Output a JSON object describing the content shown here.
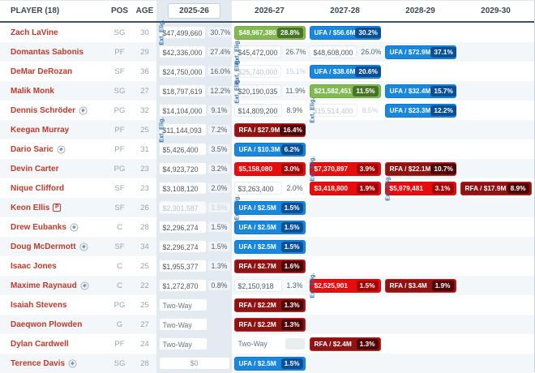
{
  "header": {
    "player": "PLAYER (18)",
    "pos": "POS",
    "age": "AGE",
    "seasons": [
      "2025-26",
      "2026-27",
      "2027-28",
      "2028-29",
      "2029-30"
    ]
  },
  "ext_label": "Ext. Elig.",
  "icons": {
    "tag": "contract-tag-icon",
    "p": "p-badge-icon",
    "p_letter": "P"
  },
  "colors": {
    "green_box": "#82ba51",
    "green_badge": "#497427",
    "red_box": "#e80c0c",
    "red_badge": "#a30404",
    "rfa_box": "#8f1313",
    "rfa_badge": "#4d0707",
    "ufa_box": "#1887dd",
    "ufa_badge": "#0b4f97",
    "season1_col_bg": "#e3eaf1",
    "alt_row_bg": "#f3f7fa",
    "player_link": "#c0392b",
    "ext_label": "#2e6da4"
  },
  "rows": [
    {
      "name": "Zach LaVine",
      "pos": "SG",
      "age": "30",
      "icon": null,
      "ext": 0,
      "cells": [
        {
          "type": "plain",
          "amount": "$47,499,660",
          "pct": "30.7%"
        },
        {
          "type": "green",
          "amount": "$48,967,380",
          "pct": "28.8%"
        },
        {
          "type": "ufa",
          "amount": "UFA / $56.6M",
          "pct": "30.2%"
        },
        null,
        null
      ]
    },
    {
      "name": "Domantas Sabonis",
      "pos": "PF",
      "age": "29",
      "icon": null,
      "ext": 1,
      "cells": [
        {
          "type": "plain",
          "amount": "$42,336,000",
          "pct": "27.4%"
        },
        {
          "type": "plain",
          "amount": "$45,472,000",
          "pct": "26.7%"
        },
        {
          "type": "plain",
          "amount": "$48,608,000",
          "pct": "26.0%"
        },
        {
          "type": "ufa",
          "amount": "UFA / $72.9M",
          "pct": "37.1%"
        },
        null
      ]
    },
    {
      "name": "DeMar DeRozan",
      "pos": "SF",
      "age": "36",
      "icon": null,
      "ext": 1,
      "cells": [
        {
          "type": "plain",
          "amount": "$24,750,000",
          "pct": "16.0%"
        },
        {
          "type": "dead",
          "amount": "$25,740,000",
          "pct": "15.1%"
        },
        {
          "type": "ufa",
          "amount": "UFA / $38.6M",
          "pct": "20.6%"
        },
        null,
        null
      ]
    },
    {
      "name": "Malik Monk",
      "pos": "SG",
      "age": "27",
      "icon": null,
      "ext": 1,
      "cells": [
        {
          "type": "plain",
          "amount": "$18,797,619",
          "pct": "12.2%"
        },
        {
          "type": "plain",
          "amount": "$20,190,035",
          "pct": "11.9%"
        },
        {
          "type": "green",
          "amount": "$21,582,451",
          "pct": "11.5%"
        },
        {
          "type": "ufa",
          "amount": "UFA / $32.4M",
          "pct": "15.7%"
        },
        null
      ]
    },
    {
      "name": "Dennis Schröder",
      "pos": "PG",
      "age": "32",
      "icon": "tag",
      "ext": 2,
      "cells": [
        {
          "type": "plain",
          "amount": "$14,104,000",
          "pct": "9.1%"
        },
        {
          "type": "plain",
          "amount": "$14,809,200",
          "pct": "8.9%"
        },
        {
          "type": "dead",
          "amount": "$15,514,400",
          "pct": "8.5%"
        },
        {
          "type": "ufa",
          "amount": "UFA / $23.3M",
          "pct": "12.2%"
        },
        null
      ]
    },
    {
      "name": "Keegan Murray",
      "pos": "PF",
      "age": "25",
      "icon": null,
      "ext": 0,
      "cells": [
        {
          "type": "plain",
          "amount": "$11,144,093",
          "pct": "7.2%"
        },
        {
          "type": "rfa",
          "amount": "RFA / $27.9M",
          "pct": "16.4%"
        },
        null,
        null,
        null
      ]
    },
    {
      "name": "Dario Saric",
      "pos": "PF",
      "age": "31",
      "icon": "tag",
      "ext": null,
      "cells": [
        {
          "type": "plain",
          "amount": "$5,426,400",
          "pct": "3.5%"
        },
        {
          "type": "ufa",
          "amount": "UFA / $10.3M",
          "pct": "6.2%"
        },
        null,
        null,
        null
      ]
    },
    {
      "name": "Devin Carter",
      "pos": "PG",
      "age": "23",
      "icon": null,
      "ext": 2,
      "cells": [
        {
          "type": "plain",
          "amount": "$4,923,720",
          "pct": "3.2%"
        },
        {
          "type": "red",
          "amount": "$5,158,080",
          "pct": "3.0%"
        },
        {
          "type": "red",
          "amount": "$7,370,897",
          "pct": "3.9%"
        },
        {
          "type": "rfa",
          "amount": "RFA / $22.1M",
          "pct": "10.7%"
        },
        null
      ]
    },
    {
      "name": "Nique Clifford",
      "pos": "SF",
      "age": "23",
      "icon": null,
      "ext": 3,
      "cells": [
        {
          "type": "plain",
          "amount": "$3,108,120",
          "pct": "2.0%"
        },
        {
          "type": "plain",
          "amount": "$3,263,400",
          "pct": "2.0%"
        },
        {
          "type": "red",
          "amount": "$3,418,800",
          "pct": "1.9%"
        },
        {
          "type": "red",
          "amount": "$5,979,481",
          "pct": "3.1%"
        },
        {
          "type": "rfa",
          "amount": "RFA / $17.9M",
          "pct": "8.9%"
        }
      ]
    },
    {
      "name": "Keon Ellis",
      "pos": "SF",
      "age": "26",
      "icon": "p",
      "ext": 1,
      "cells": [
        {
          "type": "dead",
          "amount": "$2,301,587",
          "pct": "1.5%"
        },
        {
          "type": "ufa",
          "amount": "UFA / $2.5M",
          "pct": "1.5%"
        },
        null,
        null,
        null
      ]
    },
    {
      "name": "Drew Eubanks",
      "pos": "C",
      "age": "28",
      "icon": "tag",
      "ext": null,
      "cells": [
        {
          "type": "plain",
          "amount": "$2,296,274",
          "pct": "1.5%"
        },
        {
          "type": "ufa",
          "amount": "UFA / $2.5M",
          "pct": "1.5%"
        },
        null,
        null,
        null
      ]
    },
    {
      "name": "Doug McDermott",
      "pos": "SF",
      "age": "34",
      "icon": "tag",
      "ext": null,
      "cells": [
        {
          "type": "plain",
          "amount": "$2,296,274",
          "pct": "1.5%"
        },
        {
          "type": "ufa",
          "amount": "UFA / $2.5M",
          "pct": "1.5%"
        },
        null,
        null,
        null
      ]
    },
    {
      "name": "Isaac Jones",
      "pos": "C",
      "age": "25",
      "icon": null,
      "ext": null,
      "cells": [
        {
          "type": "plain",
          "amount": "$1,955,377",
          "pct": "1.3%"
        },
        {
          "type": "rfa",
          "amount": "RFA / $2.7M",
          "pct": "1.6%"
        },
        null,
        null,
        null
      ]
    },
    {
      "name": "Maxime Raynaud",
      "pos": "C",
      "age": "22",
      "icon": "tag",
      "ext": 2,
      "cells": [
        {
          "type": "plain",
          "amount": "$1,272,870",
          "pct": "0.8%"
        },
        {
          "type": "plain",
          "amount": "$2,150,918",
          "pct": "1.3%"
        },
        {
          "type": "red",
          "amount": "$2,525,901",
          "pct": "1.5%"
        },
        {
          "type": "rfa",
          "amount": "RFA / $3.4M",
          "pct": "1.9%"
        },
        null
      ]
    },
    {
      "name": "Isaiah Stevens",
      "pos": "PG",
      "age": "25",
      "icon": null,
      "ext": null,
      "cells": [
        {
          "type": "twoway-box",
          "amount": "Two-Way",
          "pct": ""
        },
        {
          "type": "rfa",
          "amount": "RFA / $2.2M",
          "pct": "1.3%"
        },
        null,
        null,
        null
      ]
    },
    {
      "name": "Daeqwon Plowden",
      "pos": "G",
      "age": "27",
      "icon": null,
      "ext": null,
      "cells": [
        {
          "type": "twoway-box",
          "amount": "Two-Way",
          "pct": ""
        },
        {
          "type": "rfa",
          "amount": "RFA / $2.2M",
          "pct": "1.3%"
        },
        null,
        null,
        null
      ]
    },
    {
      "name": "Dylan Cardwell",
      "pos": "PF",
      "age": "24",
      "icon": null,
      "ext": null,
      "cells": [
        {
          "type": "twoway-box",
          "amount": "Two-Way",
          "pct": ""
        },
        {
          "type": "twoway-plain",
          "amount": "Two-Way",
          "pct": ""
        },
        {
          "type": "rfa",
          "amount": "RFA / $2.4M",
          "pct": "1.3%"
        },
        null,
        null
      ]
    },
    {
      "name": "Terence Davis",
      "pos": "SG",
      "age": "28",
      "icon": "tag",
      "ext": null,
      "cells": [
        {
          "type": "zero",
          "amount": "$0",
          "pct": ""
        },
        {
          "type": "ufa",
          "amount": "UFA / $2.5M",
          "pct": "1.5%"
        },
        null,
        null,
        null
      ]
    }
  ]
}
